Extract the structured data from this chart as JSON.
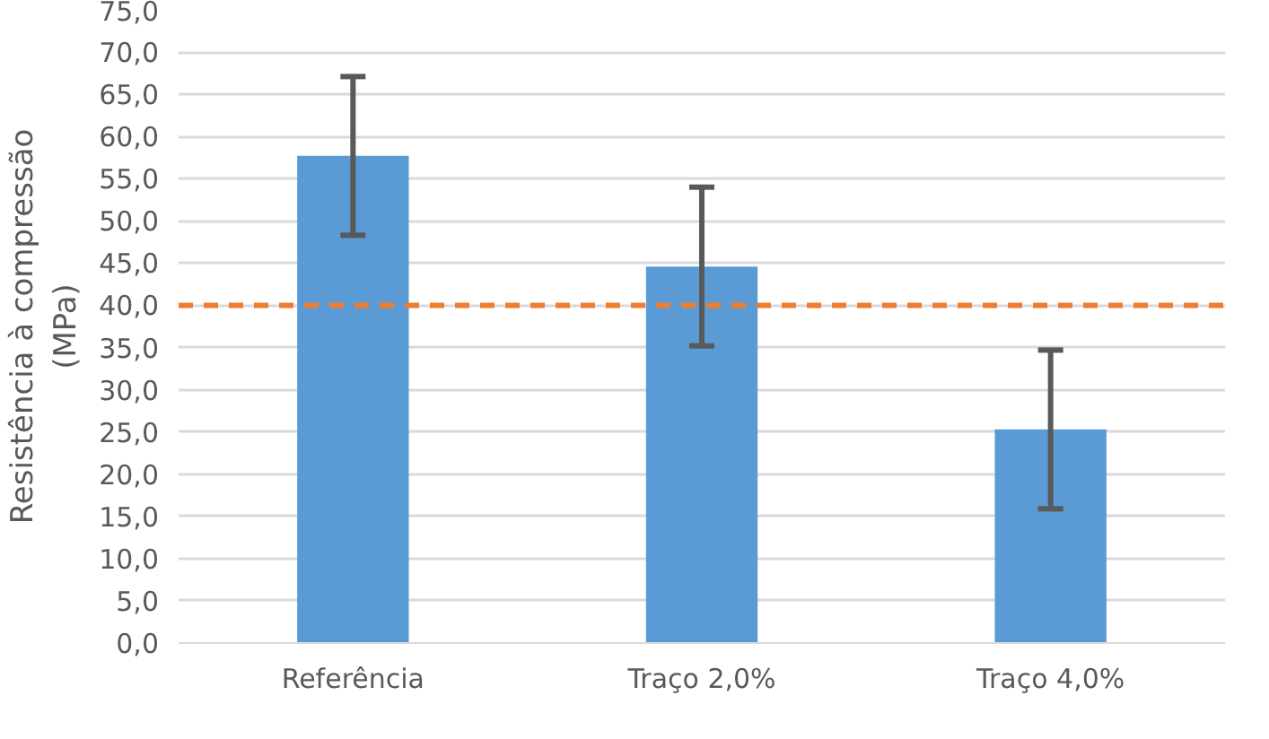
{
  "chart_data": {
    "type": "bar",
    "ylabel": "Resistência à compressão\n(MPa)",
    "categories": [
      "Referência",
      "Traço 2,0%",
      "Traço 4,0%"
    ],
    "values": [
      57.7,
      44.6,
      25.3
    ],
    "color": "#5b9bd5",
    "errors": [
      9.4,
      9.4,
      9.4
    ],
    "ylim": [
      0,
      75
    ],
    "yticks": [
      {
        "value": 0,
        "label": "0,0"
      },
      {
        "value": 5,
        "label": "5,0"
      },
      {
        "value": 10,
        "label": "10,0"
      },
      {
        "value": 15,
        "label": "15,0"
      },
      {
        "value": 20,
        "label": "20,0"
      },
      {
        "value": 25,
        "label": "25,0"
      },
      {
        "value": 30,
        "label": "30,0"
      },
      {
        "value": 35,
        "label": "35,0"
      },
      {
        "value": 40,
        "label": "40,0"
      },
      {
        "value": 45,
        "label": "45,0"
      },
      {
        "value": 50,
        "label": "50,0"
      },
      {
        "value": 55,
        "label": "55,0"
      },
      {
        "value": 60,
        "label": "60,0"
      },
      {
        "value": 65,
        "label": "65,0"
      },
      {
        "value": 70,
        "label": "70,0"
      },
      {
        "value": 75,
        "label": "75,0"
      }
    ],
    "grid": "y",
    "ref_lines": [
      {
        "axis": "y",
        "value": 40,
        "color": "#ed7d31",
        "line_style": "dashed"
      }
    ]
  }
}
